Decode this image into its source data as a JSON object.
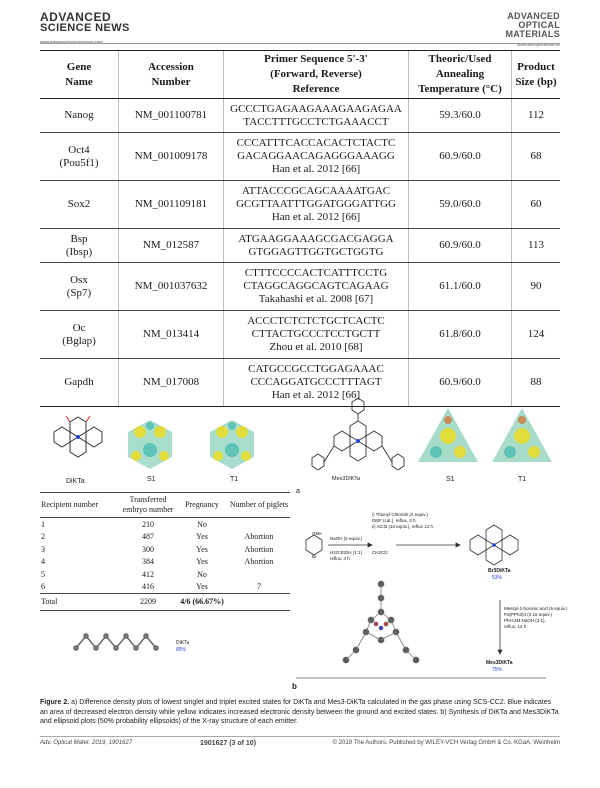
{
  "header": {
    "left_line1": "ADVANCED",
    "left_line2": "SCIENCE NEWS",
    "left_line3": "www.advancedsciencenews.com",
    "right_line1": "ADVANCED",
    "right_line2": "OPTICAL",
    "right_line3": "MATERIALS",
    "right_line4": "www.advopticalmat.de"
  },
  "primer_table": {
    "headers": {
      "gene": [
        "Gene",
        "Name"
      ],
      "accession": [
        "Accession",
        "Number"
      ],
      "primer": [
        "Primer Sequence 5'-3'",
        "(Forward, Reverse)",
        "Reference"
      ],
      "temp": [
        "Theoric/Used",
        "Annealing",
        "Temperature (°C)"
      ],
      "size": [
        "Product",
        "Size (bp)"
      ]
    },
    "rows": [
      {
        "gene": [
          "Nanog"
        ],
        "accession": "NM_001100781",
        "primer": [
          "GCCCTGAGAAGAAAGAAGAGAA",
          "TACCTTTGCCTCTGAAACCT"
        ],
        "ref": "",
        "temp": "59.3/60.0",
        "size": "112"
      },
      {
        "gene": [
          "Oct4",
          "(Pou5f1)"
        ],
        "accession": "NM_001009178",
        "primer": [
          "CCCATTTCACCACACTCTACTC",
          "GACAGGAACAGAGGGAAAGG"
        ],
        "ref": "Han et al. 2012 [66]",
        "temp": "60.9/60.0",
        "size": "68"
      },
      {
        "gene": [
          "Sox2"
        ],
        "accession": "NM_001109181",
        "primer": [
          "ATTACCCGCAGCAAAATGAC",
          "GCGTTAATTTGGATGGGATTGG"
        ],
        "ref": "Han et al. 2012 [66]",
        "temp": "59.0/60.0",
        "size": "60"
      },
      {
        "gene": [
          "Bsp",
          "(Ibsp)"
        ],
        "accession": "NM_012587",
        "primer": [
          "ATGAAGGAAAGCGACGAGGA",
          "GTGGAGTTGGTGCTGGTG"
        ],
        "ref": "",
        "temp": "60.9/60.0",
        "size": "113"
      },
      {
        "gene": [
          "Osx",
          "(Sp7)"
        ],
        "accession": "NM_001037632",
        "primer": [
          "CTTTCCCCACTCATTTCCTG",
          "CTAGGCAGGCAGTCAGAAG"
        ],
        "ref": "Takahashi et al. 2008 [67]",
        "temp": "61.1/60.0",
        "size": "90"
      },
      {
        "gene": [
          "Oc",
          "(Bglap)"
        ],
        "accession": "NM_013414",
        "primer": [
          "ACCCTCTCTCTGCTCACTC",
          "CTTACTGCCCTCCTGCTT"
        ],
        "ref": "Zhou et al. 2010 [68]",
        "temp": "61.8/60.0",
        "size": "124"
      },
      {
        "gene": [
          "Gapdh"
        ],
        "accession": "NM_017008",
        "primer": [
          "CATGCCGCCTGGAGAAAC",
          "CCCAGGATGCCCTTTAGT"
        ],
        "ref": "Han et al. 2012 [66]",
        "temp": "60.9/60.0",
        "size": "88"
      }
    ]
  },
  "figure_a": {
    "labels": [
      "DiKTa",
      "S1",
      "T1",
      "Mes3DiKTa",
      "S1",
      "T1"
    ]
  },
  "embryo_table": {
    "headers": [
      "Recipient number",
      "Transferred embryo number",
      "Pregnancy",
      "Number of piglets"
    ],
    "rows": [
      [
        "1",
        "210",
        "No",
        ""
      ],
      [
        "2",
        "487",
        "Yes",
        "Abortion"
      ],
      [
        "3",
        "300",
        "Yes",
        "Abortion"
      ],
      [
        "4",
        "384",
        "Yes",
        "Abortion"
      ],
      [
        "5",
        "412",
        "No",
        ""
      ],
      [
        "6",
        "416",
        "Yes",
        "7"
      ]
    ],
    "total": [
      "Total",
      "2209",
      "4/6 (66.67%)",
      ""
    ]
  },
  "scheme": {
    "reagent1": "NaOH (5 equiv.)",
    "reagent1b": "H2O:EtOH (1:1)",
    "reagent1c": "reflux, 4 h",
    "step2a": "i) Thionyl Chloride (2 equiv.)",
    "step2b": "DMF (cat.), reflux, 3 h",
    "step2c": "ii) AlCl3 (10 equiv.), reflux 12 h",
    "step2d": "CH2Cl2",
    "product1": "Br3DiKTa",
    "yield1": "53%",
    "step3a": "Mesityl-2-boronic acid (6 equiv.)",
    "step3b": "Pd(PPh3)4 (0.15 equiv.)",
    "step3c": "PhH:2M NaOH (3:1),",
    "step3d": "reflux, 12 h",
    "product2": "Mes3DiKTa",
    "yield2": "75%",
    "ome": "OMe",
    "br": "Br",
    "dikta": "DiKTa",
    "dikta_yield": "89%",
    "sub_b": "b",
    "sub_a": "a"
  },
  "caption": {
    "label": "Figure 2.",
    "text": "a) Difference density plots of lowest singlet and triplet excited states for DiKTa and Mes3-DiKTa calculated in the gas phase using SCS-CC2. Blue indicates an area of decreased electron density while yellow indicates increased electronic density between the ground and excited states. b) Synthesis of DiKTa and Mes3DiKTa and ellipsoid plots (50% probability ellipsoids) of the X-ray structure of each emitter."
  },
  "footer": {
    "journal": "Adv. Optical Mater. 2019, 1901627",
    "page": "1901627  (3 of 10)",
    "copyright": "© 2019 The Authors. Published by WILEY-VCH Verlag GmbH & Co. KGaA, Weinheim"
  }
}
